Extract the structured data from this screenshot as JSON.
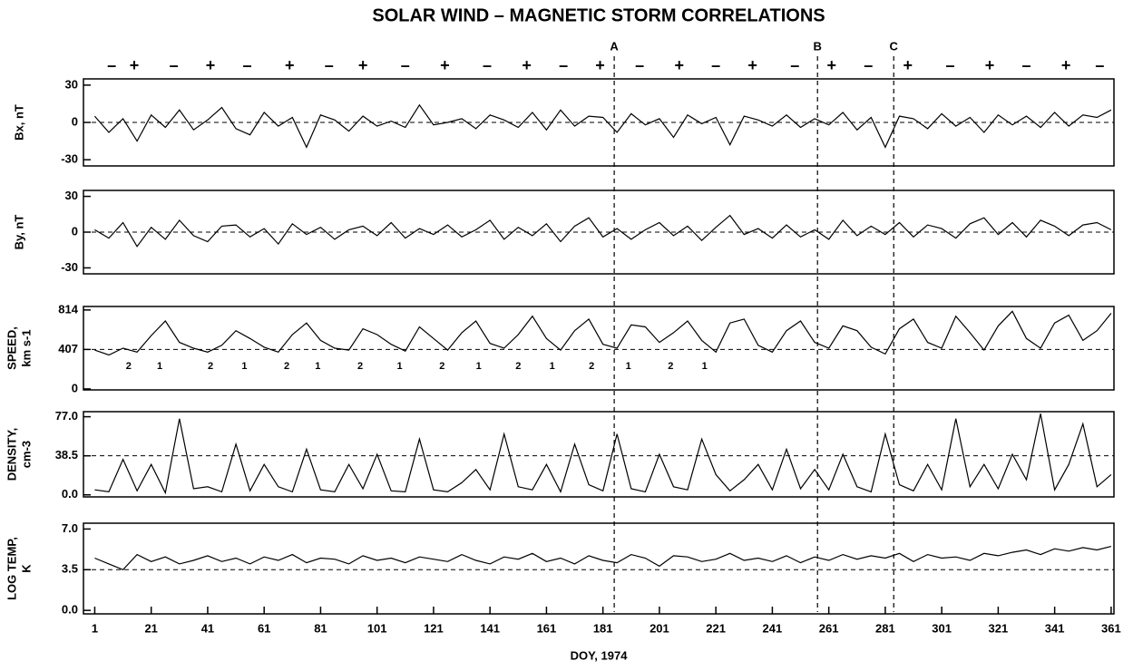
{
  "title": "SOLAR WIND – MAGNETIC STORM CORRELATIONS",
  "sectors": {
    "labels": [
      "–",
      "+",
      "–",
      "+",
      "–",
      "+",
      "–",
      "+",
      "–",
      "+",
      "–",
      "+",
      "–",
      "+",
      "–",
      "+",
      "–",
      "+",
      "–",
      "+",
      "–",
      "+",
      "–",
      "+",
      "–",
      "+",
      "–"
    ],
    "x": [
      7,
      15,
      29,
      42,
      55,
      70,
      84,
      96,
      111,
      125,
      140,
      154,
      167,
      180,
      194,
      208,
      221,
      234,
      249,
      262,
      275,
      289,
      304,
      318,
      331,
      345,
      357
    ]
  },
  "events": [
    {
      "label": "A",
      "x": 185
    },
    {
      "label": "B",
      "x": 257
    },
    {
      "label": "C",
      "x": 284
    }
  ],
  "chart_data": [
    {
      "type": "line",
      "y_label": [
        "Bx, nT"
      ],
      "xlim": [
        -3,
        362
      ],
      "ylim": [
        -35,
        35
      ],
      "yticks": [
        -30,
        0,
        30
      ],
      "ref_line": 0,
      "color": "#000000",
      "x": [
        1,
        6,
        11,
        16,
        21,
        26,
        31,
        36,
        41,
        46,
        51,
        56,
        61,
        66,
        71,
        76,
        81,
        86,
        91,
        96,
        101,
        106,
        111,
        116,
        121,
        126,
        131,
        136,
        141,
        146,
        151,
        156,
        161,
        166,
        171,
        176,
        181,
        186,
        191,
        196,
        201,
        206,
        211,
        216,
        221,
        226,
        231,
        236,
        241,
        246,
        251,
        256,
        261,
        266,
        271,
        276,
        281,
        286,
        291,
        296,
        301,
        306,
        311,
        316,
        321,
        326,
        331,
        336,
        341,
        346,
        351,
        356,
        361
      ],
      "values": [
        5,
        -8,
        3,
        -15,
        6,
        -4,
        10,
        -6,
        2,
        12,
        -5,
        -10,
        8,
        -3,
        4,
        -20,
        6,
        2,
        -7,
        5,
        -3,
        1,
        -4,
        14,
        -2,
        0,
        3,
        -5,
        6,
        2,
        -4,
        8,
        -6,
        10,
        -3,
        5,
        4,
        -8,
        7,
        -2,
        3,
        -12,
        6,
        -1,
        4,
        -18,
        5,
        2,
        -3,
        6,
        -4,
        3,
        -2,
        8,
        -6,
        4,
        -20,
        5,
        3,
        -5,
        7,
        -3,
        4,
        -8,
        6,
        -2,
        5,
        -4,
        8,
        -3,
        6,
        4,
        10
      ]
    },
    {
      "type": "line",
      "y_label": [
        "By, nT"
      ],
      "xlim": [
        -3,
        362
      ],
      "ylim": [
        -35,
        35
      ],
      "yticks": [
        -30,
        0,
        30
      ],
      "ref_line": 0,
      "color": "#000000",
      "x": [
        1,
        6,
        11,
        16,
        21,
        26,
        31,
        36,
        41,
        46,
        51,
        56,
        61,
        66,
        71,
        76,
        81,
        86,
        91,
        96,
        101,
        106,
        111,
        116,
        121,
        126,
        131,
        136,
        141,
        146,
        151,
        156,
        161,
        166,
        171,
        176,
        181,
        186,
        191,
        196,
        201,
        206,
        211,
        216,
        221,
        226,
        231,
        236,
        241,
        246,
        251,
        256,
        261,
        266,
        271,
        276,
        281,
        286,
        291,
        296,
        301,
        306,
        311,
        316,
        321,
        326,
        331,
        336,
        341,
        346,
        351,
        356,
        361
      ],
      "values": [
        2,
        -5,
        8,
        -12,
        4,
        -6,
        10,
        -3,
        -8,
        5,
        6,
        -4,
        3,
        -10,
        7,
        -2,
        4,
        -6,
        2,
        5,
        -3,
        8,
        -5,
        3,
        -2,
        6,
        -4,
        2,
        10,
        -6,
        4,
        -3,
        7,
        -8,
        5,
        12,
        -4,
        3,
        -6,
        2,
        8,
        -3,
        5,
        -7,
        4,
        14,
        -2,
        3,
        -5,
        6,
        -4,
        2,
        -6,
        10,
        -3,
        5,
        -2,
        8,
        -4,
        6,
        3,
        -5,
        7,
        12,
        -2,
        8,
        -4,
        10,
        5,
        -3,
        6,
        8,
        2
      ]
    },
    {
      "type": "line",
      "y_label": [
        "SPEED,",
        "km s-1"
      ],
      "xlim": [
        -3,
        362
      ],
      "ylim": [
        -10,
        850
      ],
      "yticks": [
        0,
        407,
        814
      ],
      "ref_line": 407,
      "color": "#000000",
      "annotations": {
        "labels": [
          "2",
          "1",
          "2",
          "1",
          "2",
          "1",
          "2",
          "1",
          "2",
          "1",
          "2",
          "1",
          "2",
          "1",
          "2",
          "1"
        ],
        "x": [
          13,
          24,
          42,
          54,
          69,
          80,
          95,
          109,
          124,
          137,
          151,
          163,
          177,
          190,
          205,
          217
        ],
        "y": 230
      },
      "x": [
        1,
        6,
        11,
        16,
        21,
        26,
        31,
        36,
        41,
        46,
        51,
        56,
        61,
        66,
        71,
        76,
        81,
        86,
        91,
        96,
        101,
        106,
        111,
        116,
        121,
        126,
        131,
        136,
        141,
        146,
        151,
        156,
        161,
        166,
        171,
        176,
        181,
        186,
        191,
        196,
        201,
        206,
        211,
        216,
        221,
        226,
        231,
        236,
        241,
        246,
        251,
        256,
        261,
        266,
        271,
        276,
        281,
        286,
        291,
        296,
        301,
        306,
        311,
        316,
        321,
        326,
        331,
        336,
        341,
        346,
        351,
        356,
        361
      ],
      "values": [
        400,
        350,
        420,
        380,
        550,
        700,
        480,
        420,
        380,
        450,
        600,
        520,
        430,
        380,
        560,
        680,
        500,
        420,
        400,
        620,
        560,
        460,
        390,
        640,
        520,
        400,
        580,
        700,
        470,
        420,
        560,
        750,
        520,
        400,
        600,
        720,
        460,
        420,
        660,
        640,
        480,
        580,
        700,
        500,
        380,
        680,
        720,
        450,
        380,
        600,
        700,
        480,
        420,
        650,
        600,
        430,
        360,
        620,
        720,
        480,
        420,
        750,
        580,
        400,
        650,
        800,
        520,
        420,
        680,
        760,
        500,
        600,
        780
      ]
    },
    {
      "type": "line",
      "y_label": [
        "DENSITY,",
        "cm-3"
      ],
      "xlim": [
        -3,
        362
      ],
      "ylim": [
        -2,
        82
      ],
      "yticks": [
        {
          "value": 0,
          "label": "0.0"
        },
        {
          "value": 38.5,
          "label": "38.5"
        },
        {
          "value": 77,
          "label": "77.0"
        }
      ],
      "ref_line": 38.5,
      "color": "#000000",
      "x": [
        1,
        6,
        11,
        16,
        21,
        26,
        31,
        36,
        41,
        46,
        51,
        56,
        61,
        66,
        71,
        76,
        81,
        86,
        91,
        96,
        101,
        106,
        111,
        116,
        121,
        126,
        131,
        136,
        141,
        146,
        151,
        156,
        161,
        166,
        171,
        176,
        181,
        186,
        191,
        196,
        201,
        206,
        211,
        216,
        221,
        226,
        231,
        236,
        241,
        246,
        251,
        256,
        261,
        266,
        271,
        276,
        281,
        286,
        291,
        296,
        301,
        306,
        311,
        316,
        321,
        326,
        331,
        336,
        341,
        346,
        351,
        356,
        361
      ],
      "values": [
        5,
        3,
        35,
        4,
        30,
        2,
        75,
        6,
        8,
        3,
        50,
        4,
        30,
        8,
        3,
        45,
        5,
        3,
        30,
        6,
        40,
        4,
        3,
        55,
        5,
        3,
        12,
        25,
        5,
        60,
        8,
        5,
        30,
        3,
        50,
        10,
        4,
        60,
        6,
        3,
        40,
        8,
        5,
        55,
        20,
        4,
        15,
        30,
        5,
        45,
        6,
        25,
        5,
        40,
        8,
        3,
        60,
        10,
        4,
        30,
        5,
        75,
        8,
        30,
        6,
        40,
        15,
        80,
        5,
        30,
        70,
        8,
        20
      ]
    },
    {
      "type": "line",
      "y_label": [
        "LOG TEMP,",
        "K"
      ],
      "xlim": [
        -3,
        362
      ],
      "ylim": [
        -0.3,
        7.5
      ],
      "yticks": [
        {
          "value": 0,
          "label": "0.0"
        },
        3.5,
        {
          "value": 7,
          "label": "7.0"
        }
      ],
      "ref_line": 3.5,
      "color": "#000000",
      "xticks": [
        1,
        21,
        41,
        61,
        81,
        101,
        121,
        141,
        161,
        181,
        201,
        221,
        241,
        261,
        281,
        301,
        321,
        341,
        361
      ],
      "x_label": "DOY, 1974",
      "x": [
        1,
        6,
        11,
        16,
        21,
        26,
        31,
        36,
        41,
        46,
        51,
        56,
        61,
        66,
        71,
        76,
        81,
        86,
        91,
        96,
        101,
        106,
        111,
        116,
        121,
        126,
        131,
        136,
        141,
        146,
        151,
        156,
        161,
        166,
        171,
        176,
        181,
        186,
        191,
        196,
        201,
        206,
        211,
        216,
        221,
        226,
        231,
        236,
        241,
        246,
        251,
        256,
        261,
        266,
        271,
        276,
        281,
        286,
        291,
        296,
        301,
        306,
        311,
        316,
        321,
        326,
        331,
        336,
        341,
        346,
        351,
        356,
        361
      ],
      "values": [
        4.5,
        4.0,
        3.5,
        4.8,
        4.2,
        4.6,
        4.0,
        4.3,
        4.7,
        4.2,
        4.5,
        4.0,
        4.6,
        4.3,
        4.8,
        4.1,
        4.5,
        4.4,
        4.0,
        4.7,
        4.3,
        4.5,
        4.1,
        4.6,
        4.4,
        4.2,
        4.8,
        4.3,
        4.0,
        4.6,
        4.4,
        4.9,
        4.2,
        4.5,
        4.0,
        4.7,
        4.3,
        4.1,
        4.8,
        4.5,
        3.8,
        4.7,
        4.6,
        4.2,
        4.4,
        4.9,
        4.3,
        4.5,
        4.2,
        4.7,
        4.1,
        4.6,
        4.3,
        4.8,
        4.4,
        4.7,
        4.5,
        4.9,
        4.2,
        4.8,
        4.5,
        4.6,
        4.3,
        4.9,
        4.7,
        5.0,
        5.2,
        4.8,
        5.3,
        5.1,
        5.4,
        5.2,
        5.5
      ]
    }
  ]
}
